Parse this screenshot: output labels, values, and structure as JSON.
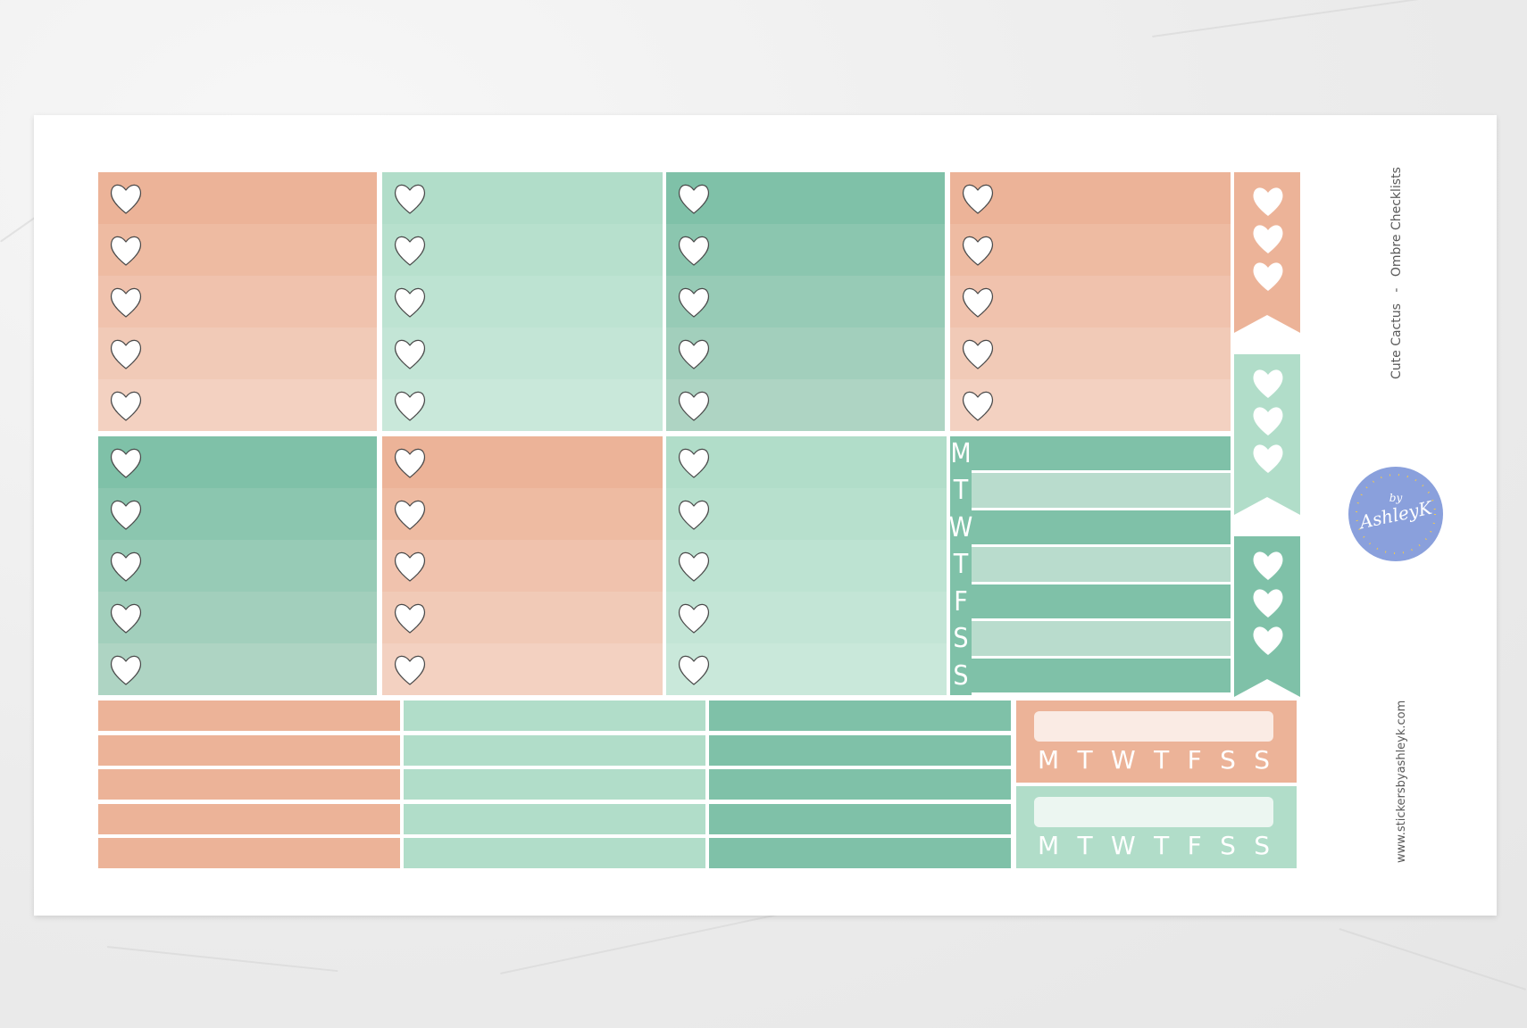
{
  "sheet": {
    "title": "Cute Cactus",
    "separator": "-",
    "subtitle": "Ombre Checklists",
    "website": "www.stickersbyashleyk.com",
    "logo_text_top": "by",
    "logo_text_main": "AshleyK"
  },
  "colors": {
    "peach_dark": "#ecb398",
    "peach_light": "#f3d1c1",
    "mint_dark": "#b1ddc9",
    "mint_light": "#c9e8da",
    "green_dark": "#7fc1a8",
    "green_light": "#aed4c3",
    "logo_blue": "#8aa0dc",
    "heart_fill": "#ffffff"
  },
  "weekdays_column": [
    "M",
    "T",
    "W",
    "T",
    "F",
    "S",
    "S"
  ],
  "tracker_days": [
    "M",
    "T",
    "W",
    "T",
    "F",
    "S",
    "S"
  ],
  "icons": {
    "checkbox": "heart-icon"
  }
}
